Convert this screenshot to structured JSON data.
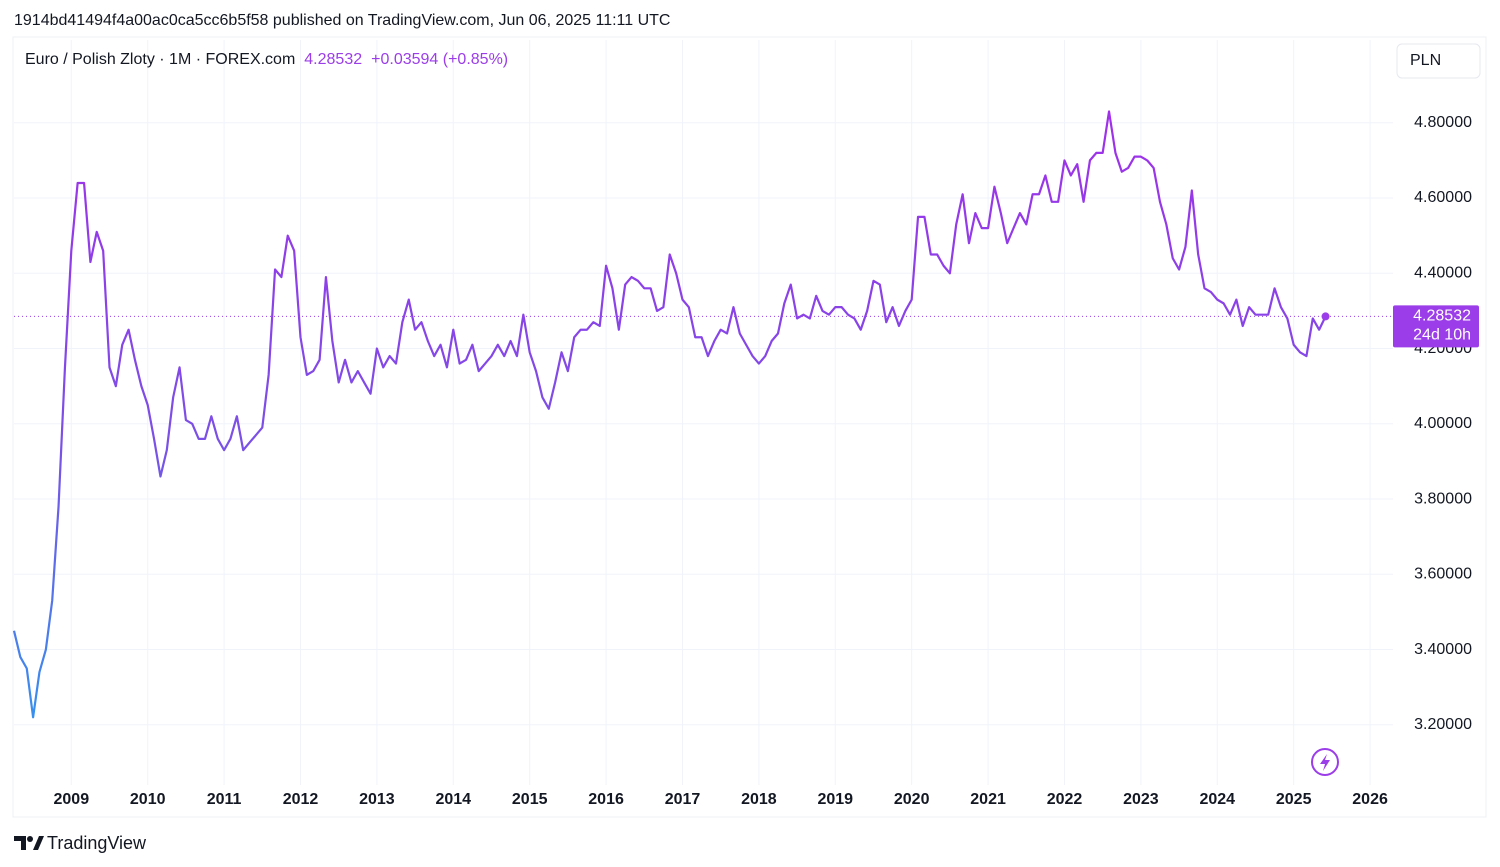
{
  "header": {
    "publish_note": "1914bd41494f4a00ac0ca5cc6b5f58 published on TradingView.com, Jun 06, 2025 11:11 UTC"
  },
  "footer": {
    "brand": "TradingView"
  },
  "chart_data": {
    "type": "line",
    "currency": "PLN",
    "change": "+0.03594 (+0.85%)",
    "countdown": "24d 10h",
    "xlim": [
      2008.25,
      2026.3
    ],
    "xticks": [
      2009,
      2010,
      2011,
      2012,
      2013,
      2014,
      2015,
      2016,
      2017,
      2018,
      2019,
      2020,
      2021,
      2022,
      2023,
      2024,
      2025,
      2026
    ],
    "ylim": [
      3.04,
      5.02
    ],
    "yticks": [
      {
        "value": 3.2,
        "label": "3.20000"
      },
      {
        "value": 3.4,
        "label": "3.40000"
      },
      {
        "value": 3.6,
        "label": "3.60000"
      },
      {
        "value": 3.8,
        "label": "3.80000"
      },
      {
        "value": 4.0,
        "label": "4.00000"
      },
      {
        "value": 4.2,
        "label": "4.20000"
      },
      {
        "value": 4.4,
        "label": "4.40000"
      },
      {
        "value": 4.6,
        "label": "4.60000"
      },
      {
        "value": 4.8,
        "label": "4.80000"
      }
    ],
    "grid": true,
    "x": [
      2008.25,
      2008.333,
      2008.417,
      2008.5,
      2008.583,
      2008.667,
      2008.75,
      2008.833,
      2008.917,
      2009,
      2009.083,
      2009.167,
      2009.25,
      2009.333,
      2009.417,
      2009.5,
      2009.583,
      2009.667,
      2009.75,
      2009.833,
      2009.917,
      2010,
      2010.083,
      2010.167,
      2010.25,
      2010.333,
      2010.417,
      2010.5,
      2010.583,
      2010.667,
      2010.75,
      2010.833,
      2010.917,
      2011,
      2011.083,
      2011.167,
      2011.25,
      2011.333,
      2011.417,
      2011.5,
      2011.583,
      2011.667,
      2011.75,
      2011.833,
      2011.917,
      2012,
      2012.083,
      2012.167,
      2012.25,
      2012.333,
      2012.417,
      2012.5,
      2012.583,
      2012.667,
      2012.75,
      2012.833,
      2012.917,
      2013,
      2013.083,
      2013.167,
      2013.25,
      2013.333,
      2013.417,
      2013.5,
      2013.583,
      2013.667,
      2013.75,
      2013.833,
      2013.917,
      2014,
      2014.083,
      2014.167,
      2014.25,
      2014.333,
      2014.417,
      2014.5,
      2014.583,
      2014.667,
      2014.75,
      2014.833,
      2014.917,
      2015,
      2015.083,
      2015.167,
      2015.25,
      2015.333,
      2015.417,
      2015.5,
      2015.583,
      2015.667,
      2015.75,
      2015.833,
      2015.917,
      2016,
      2016.083,
      2016.167,
      2016.25,
      2016.333,
      2016.417,
      2016.5,
      2016.583,
      2016.667,
      2016.75,
      2016.833,
      2016.917,
      2017,
      2017.083,
      2017.167,
      2017.25,
      2017.333,
      2017.417,
      2017.5,
      2017.583,
      2017.667,
      2017.75,
      2017.833,
      2017.917,
      2018,
      2018.083,
      2018.167,
      2018.25,
      2018.333,
      2018.417,
      2018.5,
      2018.583,
      2018.667,
      2018.75,
      2018.833,
      2018.917,
      2019,
      2019.083,
      2019.167,
      2019.25,
      2019.333,
      2019.417,
      2019.5,
      2019.583,
      2019.667,
      2019.75,
      2019.833,
      2019.917,
      2020,
      2020.083,
      2020.167,
      2020.25,
      2020.333,
      2020.417,
      2020.5,
      2020.583,
      2020.667,
      2020.75,
      2020.833,
      2020.917,
      2021,
      2021.083,
      2021.167,
      2021.25,
      2021.333,
      2021.417,
      2021.5,
      2021.583,
      2021.667,
      2021.75,
      2021.833,
      2021.917,
      2022,
      2022.083,
      2022.167,
      2022.25,
      2022.333,
      2022.417,
      2022.5,
      2022.583,
      2022.667,
      2022.75,
      2022.833,
      2022.917,
      2023,
      2023.083,
      2023.167,
      2023.25,
      2023.333,
      2023.417,
      2023.5,
      2023.583,
      2023.667,
      2023.75,
      2023.833,
      2023.917,
      2024,
      2024.083,
      2024.167,
      2024.25,
      2024.333,
      2024.417,
      2024.5,
      2024.583,
      2024.667,
      2024.75,
      2024.833,
      2024.917,
      2025,
      2025.083,
      2025.167,
      2025.25,
      2025.333,
      2025.417
    ],
    "series": [
      {
        "name": "Euro / Polish Zloty · 1M · FOREX.com",
        "color": [
          "#27a0ef",
          "#7b50e6",
          "#a22ee9"
        ],
        "values": [
          3.45,
          3.38,
          3.35,
          3.22,
          3.34,
          3.4,
          3.53,
          3.78,
          4.15,
          4.46,
          4.64,
          4.64,
          4.43,
          4.51,
          4.46,
          4.15,
          4.1,
          4.21,
          4.25,
          4.17,
          4.1,
          4.05,
          3.96,
          3.86,
          3.93,
          4.07,
          4.15,
          4.01,
          4.0,
          3.96,
          3.96,
          4.02,
          3.96,
          3.93,
          3.96,
          4.02,
          3.93,
          3.95,
          3.97,
          3.99,
          4.13,
          4.41,
          4.39,
          4.5,
          4.46,
          4.23,
          4.13,
          4.14,
          4.17,
          4.39,
          4.22,
          4.11,
          4.17,
          4.11,
          4.14,
          4.11,
          4.08,
          4.2,
          4.15,
          4.18,
          4.16,
          4.27,
          4.33,
          4.25,
          4.27,
          4.22,
          4.18,
          4.21,
          4.15,
          4.25,
          4.16,
          4.17,
          4.21,
          4.14,
          4.16,
          4.18,
          4.21,
          4.18,
          4.22,
          4.18,
          4.29,
          4.19,
          4.14,
          4.07,
          4.04,
          4.11,
          4.19,
          4.14,
          4.23,
          4.25,
          4.25,
          4.27,
          4.26,
          4.42,
          4.36,
          4.25,
          4.37,
          4.39,
          4.38,
          4.36,
          4.36,
          4.3,
          4.31,
          4.45,
          4.4,
          4.33,
          4.31,
          4.23,
          4.23,
          4.18,
          4.22,
          4.25,
          4.24,
          4.31,
          4.24,
          4.21,
          4.18,
          4.16,
          4.18,
          4.22,
          4.24,
          4.32,
          4.37,
          4.28,
          4.29,
          4.28,
          4.34,
          4.3,
          4.29,
          4.31,
          4.31,
          4.29,
          4.28,
          4.25,
          4.3,
          4.38,
          4.37,
          4.27,
          4.31,
          4.26,
          4.3,
          4.33,
          4.55,
          4.55,
          4.45,
          4.45,
          4.42,
          4.4,
          4.53,
          4.61,
          4.48,
          4.56,
          4.52,
          4.52,
          4.63,
          4.56,
          4.48,
          4.52,
          4.56,
          4.53,
          4.61,
          4.61,
          4.66,
          4.59,
          4.59,
          4.7,
          4.66,
          4.69,
          4.59,
          4.7,
          4.72,
          4.72,
          4.83,
          4.72,
          4.67,
          4.68,
          4.71,
          4.71,
          4.7,
          4.68,
          4.59,
          4.53,
          4.44,
          4.41,
          4.47,
          4.62,
          4.45,
          4.36,
          4.35,
          4.33,
          4.32,
          4.29,
          4.33,
          4.26,
          4.31,
          4.29,
          4.29,
          4.29,
          4.36,
          4.31,
          4.28,
          4.21,
          4.19,
          4.18,
          4.28,
          4.25,
          4.28532
        ]
      }
    ]
  }
}
